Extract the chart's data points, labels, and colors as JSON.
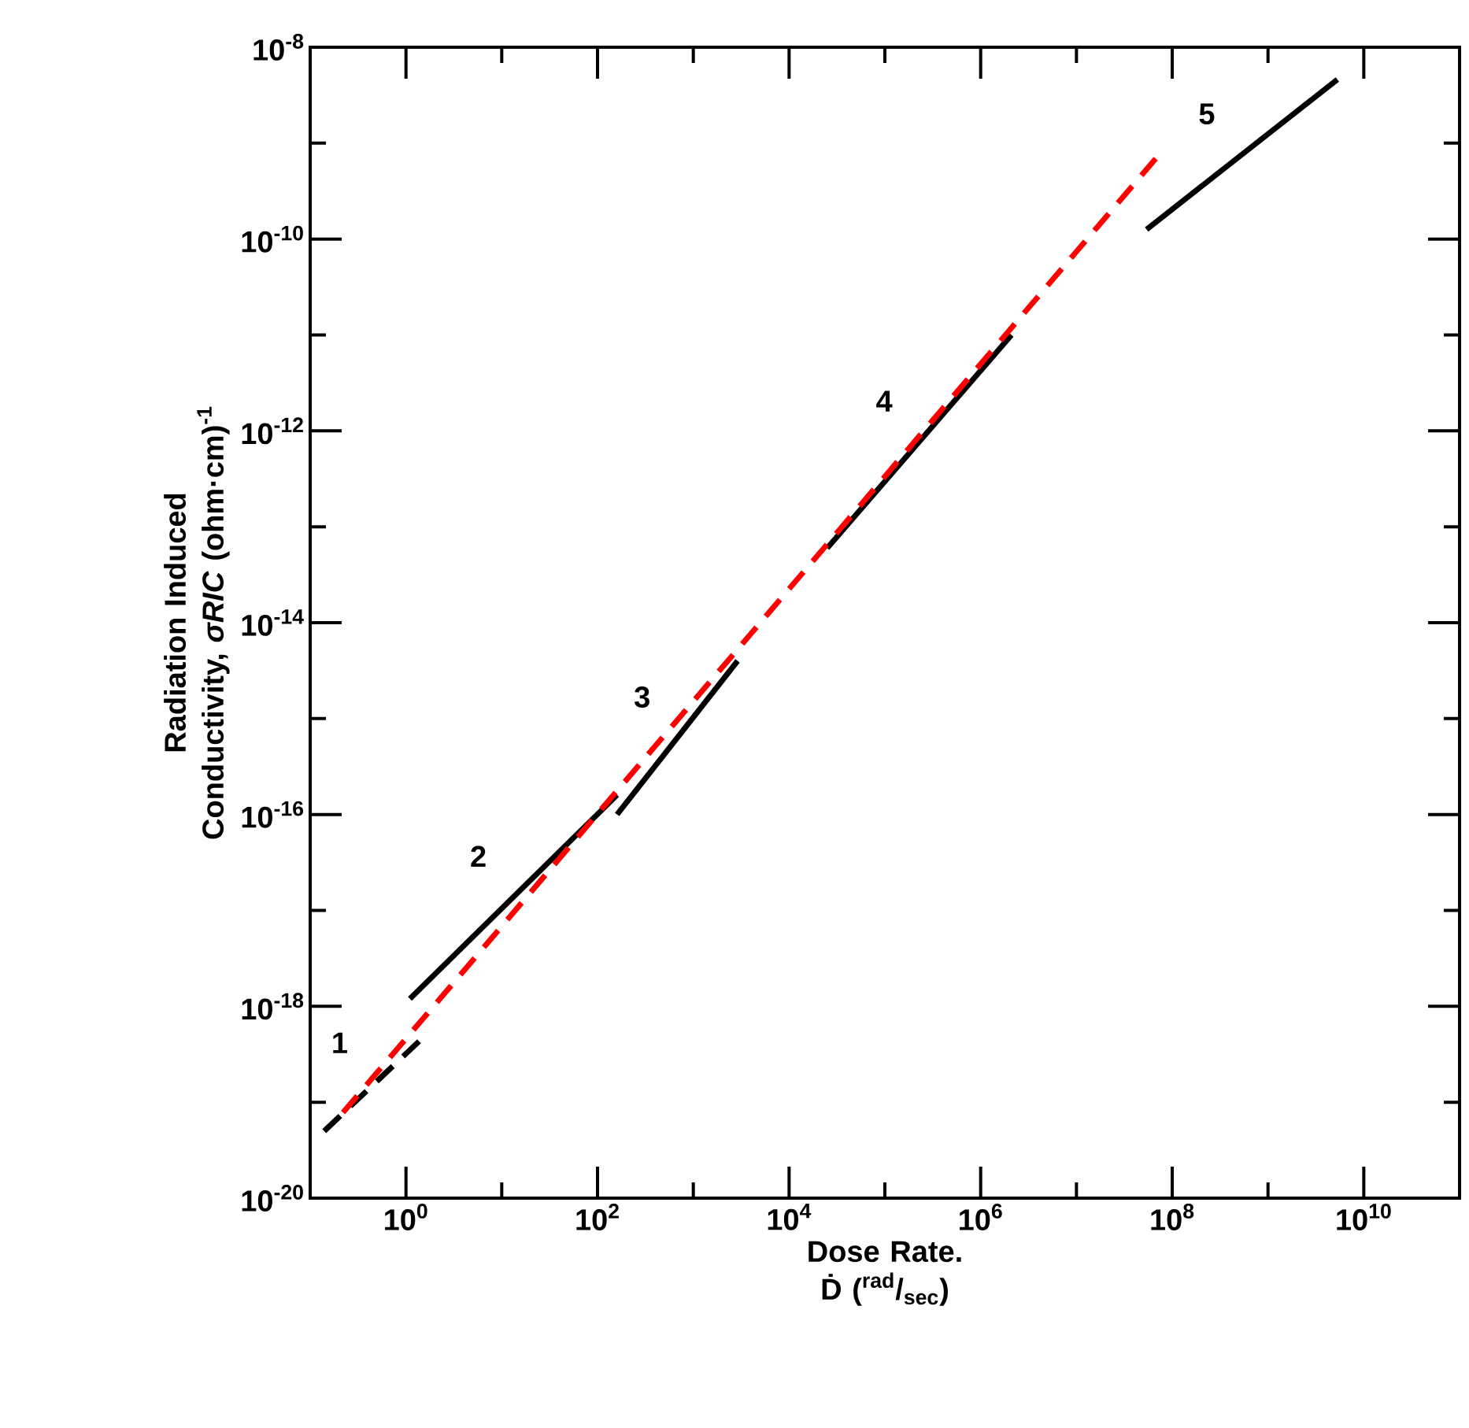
{
  "chart_data": {
    "type": "line",
    "xlabel": "Dose Rate. Ḋ ($^{rad}$/$_{sec}$)",
    "ylabel": "Radiation Induced Conductivity, *σRIC* (ohm·cm)$^{-1}$",
    "log": "xy",
    "xlim": [
      0.1,
      100000000000.0
    ],
    "ylim": [
      1e-20,
      1e-08
    ],
    "xticks": [
      {
        "value": 1,
        "label": "10$^{0}$"
      },
      {
        "value": 10,
        "label": null
      },
      {
        "value": 100,
        "label": "10$^{2}$"
      },
      {
        "value": 1000,
        "label": null
      },
      {
        "value": 10000,
        "label": "10$^{4}$"
      },
      {
        "value": 100000,
        "label": null
      },
      {
        "value": 1000000,
        "label": "10$^{6}$"
      },
      {
        "value": 10000000,
        "label": null
      },
      {
        "value": 100000000,
        "label": "10$^{8}$"
      },
      {
        "value": 1000000000,
        "label": null
      },
      {
        "value": 10000000000,
        "label": "10$^{10}$"
      }
    ],
    "yticks": [
      {
        "value": 1e-20,
        "label": "10$^{-20}$"
      },
      {
        "value": 1e-19,
        "label": null
      },
      {
        "value": 1e-18,
        "label": "10$^{-18}$"
      },
      {
        "value": 1e-17,
        "label": null
      },
      {
        "value": 1e-16,
        "label": "10$^{-16}$"
      },
      {
        "value": 1e-15,
        "label": null
      },
      {
        "value": 1e-14,
        "label": "10$^{-14}$"
      },
      {
        "value": 1e-13,
        "label": null
      },
      {
        "value": 1e-12,
        "label": "10$^{-12}$"
      },
      {
        "value": 1e-11,
        "label": null
      },
      {
        "value": 1e-10,
        "label": "10$^{-10}$"
      },
      {
        "value": 1e-09,
        "label": null
      },
      {
        "value": 1e-08,
        "label": "10$^{-8}$"
      }
    ],
    "grid": false,
    "series": [
      {
        "color": "#000000",
        "line_style": "dashed",
        "x": [
          0.14,
          1.6
        ],
        "values": [
          5e-20,
          5e-19
        ]
      },
      {
        "color": "#000000",
        "line_style": "solid",
        "x": [
          1.1,
          160
        ],
        "values": [
          1.2e-18,
          1.6e-16
        ]
      },
      {
        "color": "#000000",
        "line_style": "solid",
        "x": [
          160,
          2900
        ],
        "values": [
          1e-16,
          4e-15
        ]
      },
      {
        "color": "#000000",
        "line_style": "solid",
        "x": [
          25000,
          2100000
        ],
        "values": [
          6e-14,
          1e-11
        ]
      },
      {
        "color": "#000000",
        "line_style": "solid",
        "x": [
          54000000,
          5300000000
        ],
        "values": [
          1.26e-10,
          4.6e-09
        ]
      },
      {
        "color": "#ff0000",
        "line_style": "dashed",
        "x": [
          0.22,
          68000000
        ],
        "values": [
          7.8e-20,
          7e-10
        ]
      }
    ],
    "annotations": [
      "1",
      "2",
      "3",
      "4",
      "5"
    ]
  }
}
